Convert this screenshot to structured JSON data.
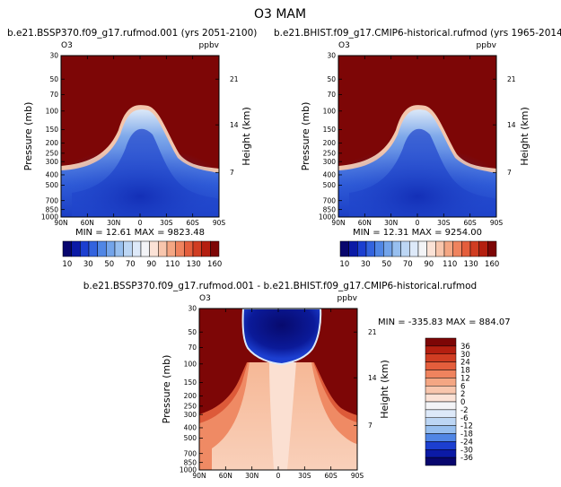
{
  "figure": {
    "title": "O3 MAM"
  },
  "panels": [
    {
      "id": "top-left",
      "title": "b.e21.BSSP370.f09_g17.rufmod.001 (yrs 2051-2100)",
      "var_label": "O3",
      "units": "ppbv",
      "stats": "MIN =  12.61   MAX = 9823.48"
    },
    {
      "id": "top-right",
      "title": "b.e21.BHIST.f09_g17.CMIP6-historical.rufmod (yrs 1965-2014)",
      "var_label": "O3",
      "units": "ppbv",
      "stats": "MIN =  12.31   MAX = 9254.00"
    },
    {
      "id": "bottom",
      "title": "b.e21.BSSP370.f09_g17.rufmod.001 - b.e21.BHIST.f09_g17.CMIP6-historical.rufmod",
      "var_label": "O3",
      "units": "ppbv",
      "stats": "MIN = -335.83   MAX = 884.07"
    }
  ],
  "chart_data": {
    "type": "heatmap",
    "title": "O3 MAM",
    "xlabel": "",
    "ylabel": "Pressure (mb)",
    "ylabel_right": "Height (km)",
    "x_ticks": [
      "90N",
      "60N",
      "30N",
      "0",
      "30S",
      "60S",
      "90S"
    ],
    "y_ticks": [
      "30",
      "50",
      "70",
      "100",
      "150",
      "200",
      "250",
      "300",
      "400",
      "500",
      "700",
      "850",
      "1000"
    ],
    "y_ticks_values": [
      30,
      50,
      70,
      100,
      150,
      200,
      250,
      300,
      400,
      500,
      700,
      850,
      1000
    ],
    "height_ticks": [
      "21",
      "14",
      "7"
    ],
    "height_ticks_pressure": [
      50,
      135,
      380
    ],
    "ylim": [
      1000,
      30
    ],
    "xlim": [
      90,
      -90
    ],
    "top_colorbar": {
      "labels": [
        "10",
        "30",
        "50",
        "70",
        "90",
        "110",
        "130",
        "160"
      ],
      "colors": [
        "#08066e",
        "#0b1aa6",
        "#1c3fd0",
        "#3363de",
        "#5086e5",
        "#73a4ea",
        "#97bfef",
        "#bcd6f4",
        "#dde9f9",
        "#f3f4f7",
        "#fbe2d6",
        "#f8c6ad",
        "#f4a683",
        "#ef835e",
        "#e45e3c",
        "#d03d22",
        "#b41f10",
        "#7d0606"
      ]
    },
    "bottom_colorbar": {
      "labels": [
        "36",
        "30",
        "24",
        "18",
        "12",
        "6",
        "2",
        "0",
        "-2",
        "-6",
        "-12",
        "-18",
        "-24",
        "-30",
        "-36"
      ],
      "colors": [
        "#7d0606",
        "#b41f10",
        "#d03d22",
        "#e45e3c",
        "#ef835e",
        "#f4a683",
        "#f8c6ad",
        "#fbe2d6",
        "#f3f4f7",
        "#dde9f9",
        "#bcd6f4",
        "#97bfef",
        "#5086e5",
        "#1c3fd0",
        "#0b1aa6",
        "#08066e"
      ]
    }
  }
}
